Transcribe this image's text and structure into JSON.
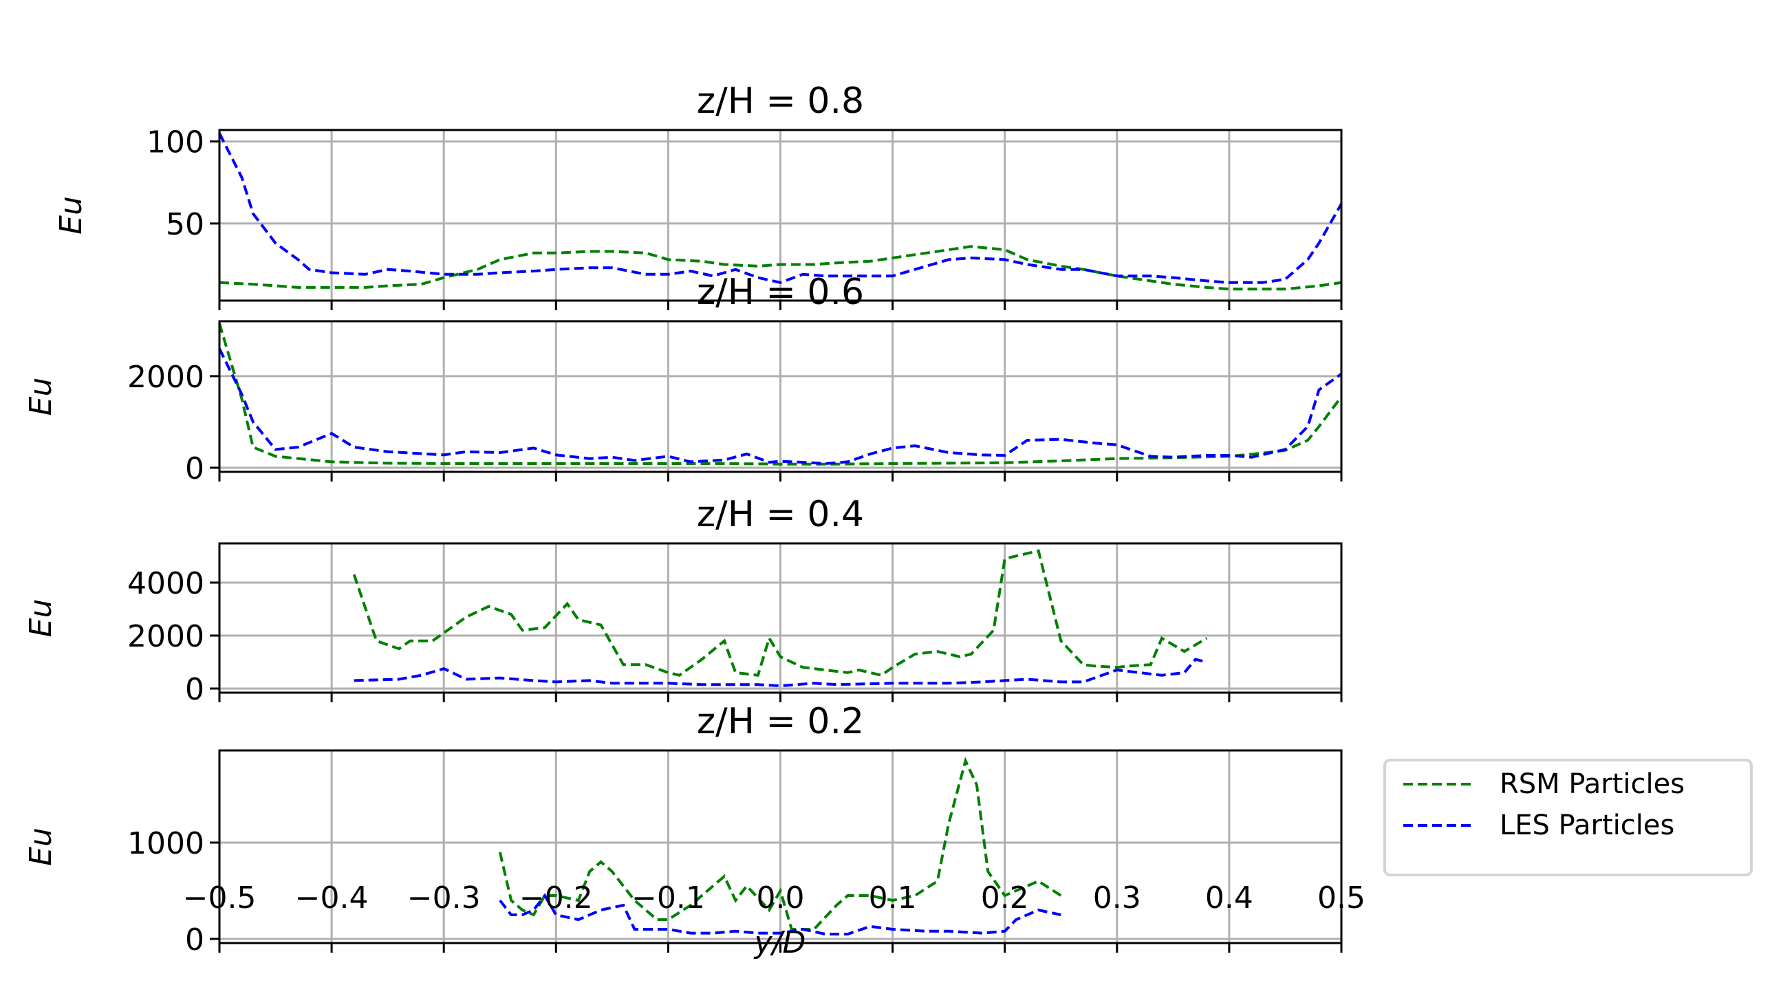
{
  "chart_data": {
    "type": "line",
    "title": "",
    "xlabel": "y/D",
    "xlim": [
      -0.5,
      0.5
    ],
    "xticks": [
      "−0.5",
      "−0.4",
      "−0.3",
      "−0.2",
      "−0.1",
      "0.0",
      "0.1",
      "0.2",
      "0.3",
      "0.4",
      "0.5"
    ],
    "grid": true,
    "legend": {
      "position": "right of bottom panel",
      "entries": [
        {
          "label": "RSM Particles",
          "color": "#008000",
          "style": "dashed"
        },
        {
          "label": "LES Particles",
          "color": "#0000ff",
          "style": "dashed"
        }
      ]
    },
    "panels": [
      {
        "title": "z/H = 0.8",
        "ylabel": "Eu",
        "ylim": [
          3,
          107
        ],
        "yticks": [
          50,
          100
        ],
        "series": [
          {
            "name": "RSM Particles",
            "color": "#008000",
            "x": [
              -0.5,
              -0.47,
              -0.45,
              -0.43,
              -0.4,
              -0.37,
              -0.35,
              -0.32,
              -0.3,
              -0.27,
              -0.25,
              -0.22,
              -0.2,
              -0.17,
              -0.15,
              -0.12,
              -0.1,
              -0.07,
              -0.05,
              -0.02,
              0.0,
              0.03,
              0.05,
              0.08,
              0.1,
              0.12,
              0.15,
              0.17,
              0.2,
              0.22,
              0.25,
              0.27,
              0.3,
              0.33,
              0.35,
              0.38,
              0.4,
              0.43,
              0.45,
              0.48,
              0.5
            ],
            "values": [
              14,
              13,
              12,
              11,
              11,
              11,
              12,
              13,
              17,
              22,
              28,
              32,
              32,
              33,
              33,
              32,
              28,
              27,
              25,
              24,
              25,
              25,
              26,
              27,
              29,
              31,
              34,
              36,
              34,
              28,
              24,
              22,
              18,
              15,
              13,
              11,
              10,
              10,
              10,
              12,
              14
            ]
          },
          {
            "name": "LES Particles",
            "color": "#0000ff",
            "x": [
              -0.5,
              -0.48,
              -0.47,
              -0.45,
              -0.43,
              -0.42,
              -0.4,
              -0.37,
              -0.35,
              -0.33,
              -0.3,
              -0.27,
              -0.25,
              -0.22,
              -0.2,
              -0.17,
              -0.15,
              -0.12,
              -0.1,
              -0.08,
              -0.06,
              -0.04,
              -0.02,
              0.0,
              0.02,
              0.04,
              0.06,
              0.08,
              0.1,
              0.12,
              0.15,
              0.17,
              0.2,
              0.22,
              0.25,
              0.27,
              0.3,
              0.33,
              0.35,
              0.38,
              0.4,
              0.43,
              0.45,
              0.47,
              0.48,
              0.5
            ],
            "values": [
              105,
              78,
              56,
              38,
              28,
              22,
              20,
              19,
              22,
              21,
              19,
              19,
              20,
              21,
              22,
              23,
              23,
              19,
              19,
              21,
              18,
              22,
              17,
              14,
              19,
              18,
              18,
              18,
              18,
              22,
              28,
              29,
              28,
              25,
              22,
              22,
              18,
              18,
              17,
              15,
              14,
              14,
              16,
              28,
              38,
              62
            ]
          }
        ]
      },
      {
        "title": "z/H = 0.6",
        "ylabel": "Eu",
        "ylim": [
          -90,
          3200
        ],
        "yticks": [
          0,
          2000
        ],
        "series": [
          {
            "name": "RSM Particles",
            "color": "#008000",
            "x": [
              -0.5,
              -0.48,
              -0.47,
              -0.45,
              -0.4,
              -0.35,
              -0.3,
              -0.25,
              -0.2,
              -0.15,
              -0.1,
              -0.05,
              0.0,
              0.05,
              0.1,
              0.15,
              0.2,
              0.25,
              0.3,
              0.35,
              0.4,
              0.43,
              0.45,
              0.47,
              0.48,
              0.5
            ],
            "values": [
              3150,
              1500,
              450,
              250,
              130,
              100,
              90,
              90,
              90,
              90,
              90,
              90,
              80,
              80,
              90,
              100,
              110,
              150,
              200,
              220,
              250,
              320,
              380,
              600,
              900,
              1550
            ]
          },
          {
            "name": "LES Particles",
            "color": "#0000ff",
            "x": [
              -0.5,
              -0.48,
              -0.47,
              -0.45,
              -0.43,
              -0.4,
              -0.38,
              -0.35,
              -0.3,
              -0.28,
              -0.25,
              -0.22,
              -0.2,
              -0.17,
              -0.15,
              -0.13,
              -0.1,
              -0.08,
              -0.05,
              -0.03,
              -0.01,
              0.0,
              0.02,
              0.04,
              0.06,
              0.08,
              0.1,
              0.12,
              0.15,
              0.18,
              0.2,
              0.22,
              0.25,
              0.28,
              0.3,
              0.33,
              0.35,
              0.38,
              0.4,
              0.42,
              0.45,
              0.47,
              0.48,
              0.5
            ],
            "values": [
              2600,
              1600,
              1000,
              400,
              450,
              750,
              450,
              350,
              280,
              350,
              330,
              430,
              280,
              200,
              230,
              160,
              250,
              130,
              170,
              300,
              120,
              140,
              120,
              90,
              130,
              300,
              430,
              480,
              330,
              280,
              270,
              600,
              620,
              540,
              500,
              250,
              230,
              270,
              270,
              230,
              400,
              900,
              1700,
              2050
            ]
          }
        ]
      },
      {
        "title": "z/H = 0.4",
        "ylabel": "Eu",
        "ylim": [
          -156,
          5480
        ],
        "yticks": [
          0,
          2000,
          4000
        ],
        "series": [
          {
            "name": "RSM Particles",
            "color": "#008000",
            "x": [
              -0.38,
              -0.36,
              -0.34,
              -0.33,
              -0.31,
              -0.3,
              -0.28,
              -0.26,
              -0.24,
              -0.23,
              -0.21,
              -0.19,
              -0.18,
              -0.16,
              -0.14,
              -0.12,
              -0.1,
              -0.09,
              -0.07,
              -0.05,
              -0.04,
              -0.02,
              -0.01,
              0.0,
              0.02,
              0.04,
              0.06,
              0.07,
              0.09,
              0.1,
              0.12,
              0.14,
              0.16,
              0.17,
              0.19,
              0.2,
              0.22,
              0.23,
              0.25,
              0.27,
              0.28,
              0.3,
              0.31,
              0.33,
              0.34,
              0.36,
              0.38
            ],
            "values": [
              4300,
              1800,
              1500,
              1800,
              1800,
              2100,
              2700,
              3100,
              2800,
              2200,
              2300,
              3200,
              2600,
              2400,
              900,
              900,
              600,
              500,
              1100,
              1800,
              600,
              500,
              1900,
              1200,
              800,
              700,
              600,
              700,
              500,
              800,
              1300,
              1400,
              1200,
              1300,
              2200,
              4900,
              5100,
              5200,
              1800,
              900,
              850,
              800,
              850,
              900,
              1900,
              1400,
              1900
            ]
          },
          {
            "name": "LES Particles",
            "color": "#0000ff",
            "x": [
              -0.38,
              -0.34,
              -0.32,
              -0.3,
              -0.28,
              -0.25,
              -0.22,
              -0.2,
              -0.17,
              -0.15,
              -0.12,
              -0.1,
              -0.07,
              -0.05,
              -0.02,
              0.0,
              0.03,
              0.05,
              0.08,
              0.1,
              0.13,
              0.15,
              0.18,
              0.2,
              0.22,
              0.25,
              0.27,
              0.29,
              0.3,
              0.32,
              0.34,
              0.36,
              0.37,
              0.38
            ],
            "values": [
              300,
              350,
              500,
              750,
              350,
              400,
              300,
              250,
              300,
              200,
              200,
              200,
              150,
              150,
              150,
              100,
              200,
              150,
              180,
              200,
              200,
              200,
              250,
              300,
              350,
              250,
              250,
              550,
              700,
              600,
              500,
              600,
              1100,
              1000
            ]
          }
        ]
      },
      {
        "title": "z/H = 0.2",
        "ylabel": "Eu",
        "ylim": [
          -43,
          1957
        ],
        "yticks": [
          0,
          1000
        ],
        "series": [
          {
            "name": "RSM Particles",
            "color": "#008000",
            "x": [
              -0.25,
              -0.24,
              -0.23,
              -0.22,
              -0.21,
              -0.2,
              -0.18,
              -0.17,
              -0.16,
              -0.15,
              -0.13,
              -0.11,
              -0.1,
              -0.08,
              -0.06,
              -0.05,
              -0.04,
              -0.03,
              -0.01,
              0.0,
              0.01,
              0.03,
              0.05,
              0.06,
              0.08,
              0.1,
              0.12,
              0.14,
              0.15,
              0.165,
              0.175,
              0.185,
              0.2,
              0.22,
              0.23,
              0.25
            ],
            "values": [
              900,
              400,
              300,
              250,
              450,
              450,
              400,
              700,
              800,
              700,
              400,
              200,
              200,
              350,
              550,
              650,
              400,
              550,
              300,
              500,
              100,
              100,
              350,
              450,
              450,
              400,
              450,
              600,
              1200,
              1850,
              1600,
              700,
              450,
              550,
              600,
              450
            ]
          },
          {
            "name": "LES Particles",
            "color": "#0000ff",
            "x": [
              -0.25,
              -0.24,
              -0.23,
              -0.22,
              -0.21,
              -0.2,
              -0.18,
              -0.16,
              -0.14,
              -0.13,
              -0.11,
              -0.1,
              -0.08,
              -0.06,
              -0.04,
              -0.02,
              0.0,
              0.02,
              0.04,
              0.06,
              0.08,
              0.1,
              0.13,
              0.15,
              0.18,
              0.2,
              0.21,
              0.23,
              0.25
            ],
            "values": [
              400,
              250,
              250,
              300,
              450,
              250,
              200,
              300,
              350,
              100,
              100,
              100,
              60,
              60,
              80,
              60,
              60,
              100,
              50,
              50,
              130,
              100,
              80,
              80,
              60,
              80,
              200,
              300,
              250
            ]
          }
        ]
      }
    ]
  }
}
